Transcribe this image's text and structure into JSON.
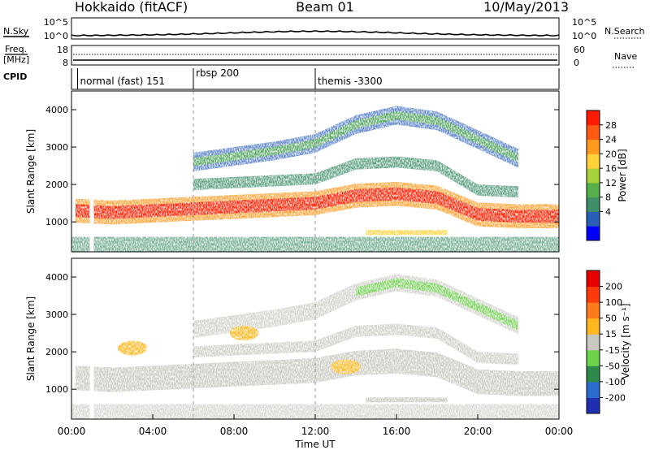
{
  "header": {
    "title": "Hokkaido (fitACF)",
    "beam": "Beam 01",
    "date": "10/May/2013"
  },
  "top_panels": {
    "nsky_label": "N.Sky",
    "nsearch_label": "N.Search",
    "noise_ticks_left": [
      "10^5",
      "10^0"
    ],
    "noise_ticks_right": [
      "10^5",
      "10^0"
    ],
    "freq_label_1": "Freq.",
    "freq_label_2": "[MHz]",
    "freq_ticks": [
      "18",
      "8"
    ],
    "nave_label": "Nave",
    "nave_ticks": [
      "60",
      "0"
    ],
    "cpid_label": "CPID",
    "cpid_segments": [
      {
        "label": "normal (fast) 151",
        "start_h": 0.3
      },
      {
        "label": "rbsp 200",
        "start_h": 6.0
      },
      {
        "label": "themis -3300",
        "start_h": 12.0
      }
    ]
  },
  "chart_data": [
    {
      "type": "heatmap",
      "title": "",
      "ylabel": "Slant Range [km]",
      "xlabel": "",
      "x_range_h": [
        0,
        24
      ],
      "ylim": [
        200,
        4500
      ],
      "yticks": [
        "1000",
        "2000",
        "3000",
        "4000"
      ],
      "colorbar": {
        "label": "Power [dB]",
        "ticks": [
          "28",
          "24",
          "20",
          "16",
          "12",
          "8",
          "4"
        ],
        "colors": [
          "#0000ff",
          "#2a5fb8",
          "#3f8f6a",
          "#55b04a",
          "#a6d23a",
          "#ffd23a",
          "#ff9a1f",
          "#ff5a14",
          "#ff1a00"
        ]
      },
      "echo_bands": [
        {
          "name": "main_band",
          "color_class": "red/orange",
          "pts": [
            [
              0.2,
              1300
            ],
            [
              2,
              1250
            ],
            [
              4,
              1300
            ],
            [
              6,
              1350
            ],
            [
              8,
              1400
            ],
            [
              10,
              1450
            ],
            [
              12,
              1500
            ],
            [
              14,
              1700
            ],
            [
              16,
              1750
            ],
            [
              18,
              1650
            ],
            [
              20,
              1200
            ],
            [
              22,
              1150
            ],
            [
              24,
              1150
            ]
          ]
        },
        {
          "name": "upper_band",
          "color_class": "green/blue",
          "pts": [
            [
              6,
              2600
            ],
            [
              8,
              2750
            ],
            [
              10,
              2900
            ],
            [
              12,
              3100
            ],
            [
              14,
              3600
            ],
            [
              16,
              3850
            ],
            [
              18,
              3700
            ],
            [
              20,
              3200
            ],
            [
              22,
              2700
            ]
          ]
        }
      ]
    },
    {
      "type": "heatmap",
      "title": "",
      "ylabel": "Slant Range [km]",
      "xlabel": "Time UT",
      "x_range_h": [
        0,
        24
      ],
      "ylim": [
        200,
        4500
      ],
      "yticks": [
        "1000",
        "2000",
        "3000",
        "4000"
      ],
      "xticks": [
        "00:00",
        "04:00",
        "08:00",
        "12:00",
        "16:00",
        "20:00",
        "00:00"
      ],
      "colorbar": {
        "label": "Velocity [m s⁻¹]",
        "ticks": [
          "200",
          "100",
          "50",
          "15",
          "-15",
          "-50",
          "-100",
          "-200"
        ],
        "colors": [
          "#1e2fb0",
          "#2a6fd0",
          "#2e8a4a",
          "#6cd24a",
          "#c8c8c0",
          "#ffb81f",
          "#ff7a1a",
          "#ff3a0a",
          "#e60000"
        ]
      }
    }
  ],
  "colors": {
    "grey_echo": "#c8c8c0",
    "ground_scatter": "#b0b0a8"
  }
}
